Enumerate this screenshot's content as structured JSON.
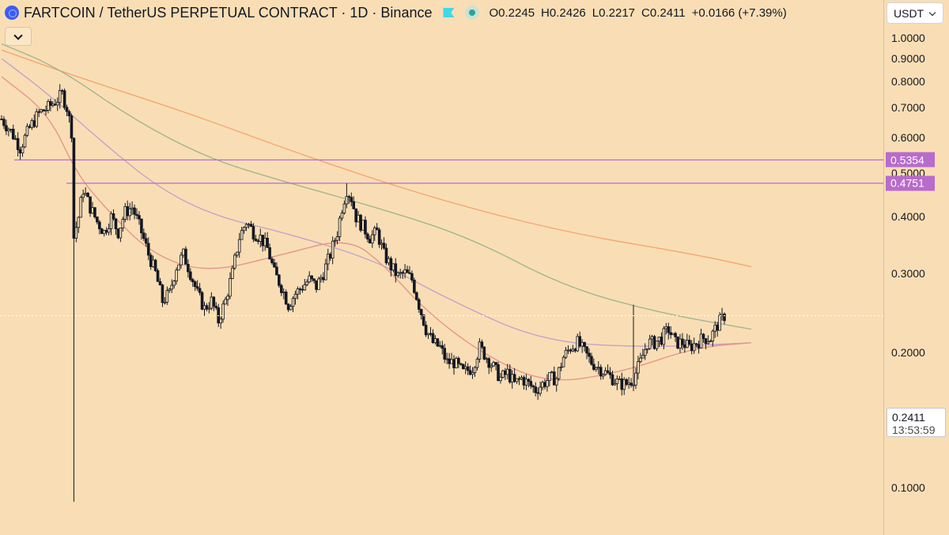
{
  "header": {
    "symbol": "FARTCOIN / TetherUS PERPETUAL CONTRACT · 1D · Binance",
    "o_label": "O",
    "o_value": "0.2245",
    "h_label": "H",
    "h_value": "0.2426",
    "l_label": "L",
    "l_value": "0.2217",
    "c_label": "C",
    "c_value": "0.2411",
    "change": "+0.0166 (+7.39%)",
    "coin_icon": "fartcoin-logo-icon",
    "flag_icon": "flag-icon",
    "status_icon": "market-status-icon"
  },
  "currency_selector": {
    "value": "USDT"
  },
  "price_axis": {
    "ticks": [
      "1.0000",
      "0.9000",
      "0.8000",
      "0.7000",
      "0.6000",
      "0.5000",
      "0.4000",
      "0.3000",
      "0.2000",
      "0.1000"
    ]
  },
  "last_price": {
    "value": "0.2411",
    "countdown": "13:53:59"
  },
  "colors": {
    "background": "#f9deb5",
    "horizontal_line": "#b86bcc",
    "ma_orange": "#f5a672",
    "ma_green": "#a2b58e",
    "ma_purple": "#c2a3c9",
    "ma_red": "#e8958c",
    "candles": "#131722"
  },
  "chart_data": {
    "type": "candlestick",
    "scale": "log",
    "ylim": [
      0.085,
      1.05
    ],
    "x_count": 194,
    "horizontal_levels": [
      {
        "value": 0.5354,
        "label": "0.5354"
      },
      {
        "value": 0.4751,
        "label": "0.4751"
      }
    ],
    "close_anchors": [
      [
        0,
        0.67
      ],
      [
        3,
        0.63
      ],
      [
        6,
        0.61
      ],
      [
        9,
        0.57
      ],
      [
        12,
        0.62
      ],
      [
        15,
        0.67
      ],
      [
        18,
        0.71
      ],
      [
        22,
        0.72
      ],
      [
        25,
        0.74
      ],
      [
        28,
        0.67
      ],
      [
        30,
        0.57
      ],
      [
        31,
        0.45
      ],
      [
        33,
        0.37
      ],
      [
        35,
        0.44
      ],
      [
        38,
        0.42
      ],
      [
        40,
        0.39
      ],
      [
        43,
        0.37
      ],
      [
        46,
        0.4
      ],
      [
        50,
        0.38
      ],
      [
        53,
        0.41
      ],
      [
        56,
        0.43
      ],
      [
        59,
        0.4
      ],
      [
        62,
        0.37
      ],
      [
        65,
        0.34
      ],
      [
        68,
        0.3
      ],
      [
        71,
        0.27
      ],
      [
        74,
        0.28
      ],
      [
        77,
        0.33
      ],
      [
        80,
        0.3
      ],
      [
        83,
        0.26
      ],
      [
        86,
        0.24
      ],
      [
        89,
        0.255
      ],
      [
        92,
        0.24
      ],
      [
        94,
        0.23
      ],
      [
        96,
        0.255
      ],
      [
        99,
        0.3
      ],
      [
        102,
        0.34
      ],
      [
        105,
        0.33
      ],
      [
        108,
        0.36
      ],
      [
        111,
        0.395
      ],
      [
        114,
        0.4
      ],
      [
        117,
        0.38
      ],
      [
        120,
        0.37
      ],
      [
        123,
        0.34
      ],
      [
        126,
        0.3
      ],
      [
        129,
        0.27
      ],
      [
        132,
        0.28
      ],
      [
        135,
        0.285
      ],
      [
        138,
        0.29
      ],
      [
        141,
        0.3
      ],
      [
        144,
        0.29
      ],
      [
        147,
        0.28
      ],
      [
        150,
        0.33
      ],
      [
        153,
        0.38
      ],
      [
        156,
        0.44
      ],
      [
        158,
        0.45
      ],
      [
        160,
        0.41
      ],
      [
        162,
        0.38
      ],
      [
        165,
        0.4
      ],
      [
        168,
        0.37
      ],
      [
        171,
        0.33
      ],
      [
        174,
        0.32
      ]
    ],
    "close_anchors_tail": [
      [
        177,
        0.3
      ],
      [
        180,
        0.29
      ],
      [
        183,
        0.3
      ],
      [
        186,
        0.28
      ],
      [
        189,
        0.25
      ],
      [
        192,
        0.22
      ],
      [
        194,
        0.21
      ]
    ],
    "moving_averages": [
      {
        "color": "#f5a672",
        "points": [
          [
            0,
            0.94
          ],
          [
            40,
            0.82
          ],
          [
            100,
            0.68
          ],
          [
            160,
            0.55
          ],
          [
            230,
            0.44
          ],
          [
            300,
            0.37
          ],
          [
            370,
            0.33
          ],
          [
            400,
            0.31
          ]
        ]
      },
      {
        "color": "#a2b58e",
        "points": [
          [
            0,
            0.97
          ],
          [
            30,
            0.86
          ],
          [
            70,
            0.66
          ],
          [
            110,
            0.54
          ],
          [
            150,
            0.48
          ],
          [
            200,
            0.42
          ],
          [
            250,
            0.36
          ],
          [
            300,
            0.28
          ],
          [
            350,
            0.245
          ],
          [
            400,
            0.225
          ]
        ]
      },
      {
        "color": "#c2a3c9",
        "points": [
          [
            0,
            0.9
          ],
          [
            25,
            0.75
          ],
          [
            55,
            0.58
          ],
          [
            85,
            0.46
          ],
          [
            115,
            0.4
          ],
          [
            150,
            0.37
          ],
          [
            200,
            0.32
          ],
          [
            240,
            0.26
          ],
          [
            290,
            0.21
          ],
          [
            350,
            0.205
          ],
          [
            400,
            0.21
          ]
        ]
      },
      {
        "color": "#e8958c",
        "points": [
          [
            0,
            0.82
          ],
          [
            25,
            0.68
          ],
          [
            40,
            0.5
          ],
          [
            55,
            0.42
          ],
          [
            80,
            0.33
          ],
          [
            110,
            0.3
          ],
          [
            150,
            0.33
          ],
          [
            185,
            0.36
          ],
          [
            205,
            0.31
          ],
          [
            225,
            0.25
          ],
          [
            255,
            0.2
          ],
          [
            290,
            0.17
          ],
          [
            330,
            0.18
          ],
          [
            370,
            0.205
          ],
          [
            400,
            0.21
          ]
        ]
      }
    ]
  }
}
